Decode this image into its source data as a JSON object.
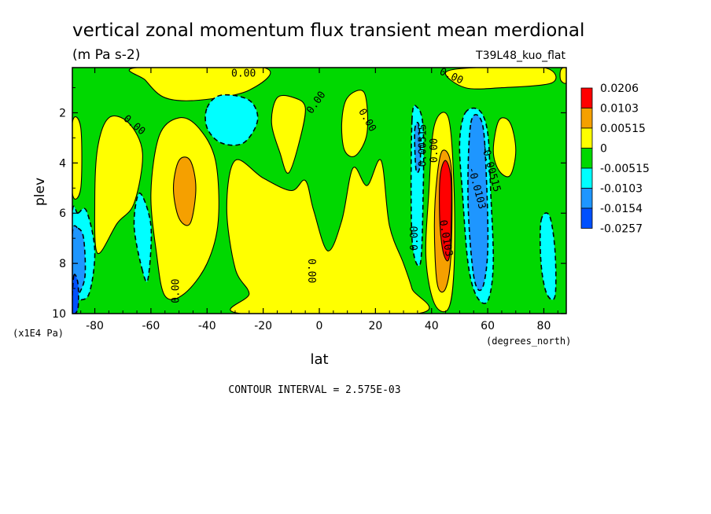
{
  "chart_data": {
    "type": "heatmap",
    "title": "vertical zonal momentum flux transient mean merdional",
    "units": "(m Pa s-2)",
    "dataset": "T39L48_kuo_flat",
    "xlabel": "lat",
    "x_units": "(degrees_north)",
    "ylabel": "plev",
    "y_units": "(x1E4 Pa)",
    "xlim": [
      -88,
      88
    ],
    "ylim": [
      0.2,
      10
    ],
    "y_inverted": true,
    "x_ticks": [
      "-80",
      "-60",
      "-40",
      "-20",
      "0",
      "20",
      "40",
      "60",
      "80"
    ],
    "y_ticks": [
      "2",
      "4",
      "6",
      "8",
      "10"
    ],
    "footer": "CONTOUR INTERVAL = 2.575E-03",
    "legend": [
      {
        "label": "0.0206",
        "color": "#ff0000"
      },
      {
        "label": "0.0103",
        "color": "#f5a000"
      },
      {
        "label": "0.00515",
        "color": "#ffff00"
      },
      {
        "label": "0",
        "color": "#00d800"
      },
      {
        "label": "-0.00515",
        "color": "#00ffff"
      },
      {
        "label": "-0.0103",
        "color": "#1e96ff"
      },
      {
        "label": "-0.0154",
        "color": "#0050ff"
      },
      {
        "label": "-0.0257",
        "color": ""
      }
    ],
    "background_color": "#00d800",
    "regions": [
      {
        "value": 0.00257,
        "color": "#ffff00",
        "pts": [
          [
            -25,
            9.2
          ],
          [
            -30,
            8.2
          ],
          [
            -33,
            5.8
          ],
          [
            -30,
            3.9
          ],
          [
            -20,
            4.6
          ],
          [
            -10,
            5.1
          ],
          [
            -5,
            4.7
          ],
          [
            -2,
            5.9
          ],
          [
            3,
            7.5
          ],
          [
            8,
            6.3
          ],
          [
            12,
            4.2
          ],
          [
            17,
            4.9
          ],
          [
            22,
            3.9
          ],
          [
            25,
            6.5
          ],
          [
            30,
            8.0
          ],
          [
            33,
            9.0
          ],
          [
            35,
            10
          ],
          [
            -28,
            10
          ]
        ]
      },
      {
        "value": 0.00257,
        "color": "#ffff00",
        "pts": [
          [
            -55,
            9.3
          ],
          [
            -58,
            7.6
          ],
          [
            -60,
            5.2
          ],
          [
            -57,
            2.9
          ],
          [
            -50,
            2.2
          ],
          [
            -43,
            2.6
          ],
          [
            -37,
            3.9
          ],
          [
            -36,
            6.3
          ],
          [
            -40,
            8.0
          ],
          [
            -48,
            9.2
          ]
        ]
      },
      {
        "value": 0.00257,
        "color": "#ffff00",
        "pts": [
          [
            -79,
            7.6
          ],
          [
            -80,
            5.6
          ],
          [
            -79,
            3.4
          ],
          [
            -75,
            2.2
          ],
          [
            -68,
            2.4
          ],
          [
            -63,
            3.6
          ],
          [
            -66,
            5.6
          ],
          [
            -72,
            6.4
          ]
        ]
      },
      {
        "value": 0.00257,
        "color": "#ffff00",
        "pts": [
          [
            -88,
            2.4
          ],
          [
            -85,
            2.6
          ],
          [
            -85,
            5.0
          ],
          [
            -88,
            5.2
          ]
        ]
      },
      {
        "value": 0.00257,
        "color": "#ffff00",
        "pts": [
          [
            -65,
            0.2
          ],
          [
            -20,
            0.2
          ],
          [
            -25,
            1.1
          ],
          [
            -43,
            1.5
          ],
          [
            -55,
            1.4
          ],
          [
            -62,
            0.7
          ]
        ]
      },
      {
        "value": 0.00257,
        "color": "#ffff00",
        "pts": [
          [
            45,
            0.4
          ],
          [
            56,
            0.2
          ],
          [
            80,
            0.2
          ],
          [
            83,
            0.8
          ],
          [
            65,
            1.0
          ],
          [
            52,
            1.0
          ]
        ]
      },
      {
        "value": 0.00257,
        "color": "#ffff00",
        "pts": [
          [
            86,
            0.3
          ],
          [
            88,
            0.2
          ],
          [
            88,
            0.8
          ],
          [
            86,
            0.7
          ]
        ]
      },
      {
        "value": 0.00257,
        "color": "#ffff00",
        "pts": [
          [
            -14,
            3.6
          ],
          [
            -17,
            2.4
          ],
          [
            -15,
            1.4
          ],
          [
            -9,
            1.4
          ],
          [
            -5,
            1.8
          ],
          [
            -7,
            3.1
          ],
          [
            -11,
            4.4
          ]
        ]
      },
      {
        "value": 0.00257,
        "color": "#ffff00",
        "pts": [
          [
            8,
            2.4
          ],
          [
            10,
            1.4
          ],
          [
            16,
            1.2
          ],
          [
            17,
            2.8
          ],
          [
            13,
            3.7
          ],
          [
            9,
            3.5
          ]
        ]
      },
      {
        "value": 0.00257,
        "color": "#ffff00",
        "pts": [
          [
            38,
            7.8
          ],
          [
            39,
            5.2
          ],
          [
            41,
            2.5
          ],
          [
            46,
            2.2
          ],
          [
            48,
            5.0
          ],
          [
            48,
            8.2
          ],
          [
            46,
            9.8
          ],
          [
            41,
            9.6
          ]
        ]
      },
      {
        "value": 0.00257,
        "color": "#ffff00",
        "pts": [
          [
            62,
            3.5
          ],
          [
            64,
            2.3
          ],
          [
            68,
            2.4
          ],
          [
            70,
            3.5
          ],
          [
            68,
            4.5
          ],
          [
            64,
            4.3
          ]
        ]
      },
      {
        "value": 0.00772,
        "color": "#f5a000",
        "pts": [
          [
            -50,
            6.2
          ],
          [
            -52,
            5.0
          ],
          [
            -50,
            3.9
          ],
          [
            -46,
            3.9
          ],
          [
            -44,
            5.0
          ],
          [
            -46,
            6.4
          ]
        ]
      },
      {
        "value": 0.00772,
        "color": "#f5a000",
        "pts": [
          [
            41,
            6.5
          ],
          [
            42,
            4.5
          ],
          [
            44,
            3.5
          ],
          [
            47,
            4.2
          ],
          [
            47,
            7.5
          ],
          [
            45,
            9.0
          ],
          [
            42,
            8.8
          ]
        ]
      },
      {
        "value": 0.0155,
        "color": "#ff0000",
        "pts": [
          [
            43,
            6.5
          ],
          [
            43,
            4.6
          ],
          [
            45,
            3.9
          ],
          [
            47,
            4.8
          ],
          [
            46.5,
            7.6
          ],
          [
            44.5,
            7.7
          ]
        ]
      },
      {
        "value": -0.00386,
        "color": "#00ffff",
        "pts": [
          [
            -40,
            1.8
          ],
          [
            -35,
            1.3
          ],
          [
            -25,
            1.5
          ],
          [
            -22,
            2.3
          ],
          [
            -27,
            3.2
          ],
          [
            -35,
            3.2
          ],
          [
            -40,
            2.6
          ]
        ]
      },
      {
        "value": -0.00386,
        "color": "#00ffff",
        "pts": [
          [
            -86,
            6.0
          ],
          [
            -83,
            5.9
          ],
          [
            -80,
            7.5
          ],
          [
            -82,
            9.2
          ],
          [
            -86,
            9.5
          ],
          [
            -88,
            9.8
          ],
          [
            -88,
            6.0
          ]
        ]
      },
      {
        "value": -0.00386,
        "color": "#00ffff",
        "pts": [
          [
            -63,
            8.3
          ],
          [
            -66,
            6.5
          ],
          [
            -64,
            5.2
          ],
          [
            -60,
            6.5
          ],
          [
            -61,
            8.6
          ]
        ]
      },
      {
        "value": -0.00386,
        "color": "#00ffff",
        "pts": [
          [
            33,
            2.3
          ],
          [
            35,
            1.8
          ],
          [
            37,
            2.6
          ],
          [
            37,
            5.3
          ],
          [
            36,
            8.0
          ],
          [
            33,
            7.0
          ]
        ]
      },
      {
        "value": -0.00386,
        "color": "#00ffff",
        "pts": [
          [
            52,
            2.0
          ],
          [
            57,
            1.9
          ],
          [
            60,
            2.8
          ],
          [
            61,
            5.0
          ],
          [
            62,
            8.0
          ],
          [
            60,
            9.5
          ],
          [
            56,
            9.3
          ],
          [
            53,
            8.0
          ],
          [
            51,
            5.2
          ],
          [
            50,
            3.2
          ]
        ]
      },
      {
        "value": -0.00386,
        "color": "#00ffff",
        "pts": [
          [
            79,
            6.3
          ],
          [
            82,
            6.1
          ],
          [
            84,
            7.5
          ],
          [
            84,
            9.3
          ],
          [
            81,
            9.2
          ],
          [
            79,
            8.0
          ]
        ]
      },
      {
        "value": -0.00772,
        "color": "#1e96ff",
        "pts": [
          [
            34,
            2.7
          ],
          [
            35.5,
            2.5
          ],
          [
            36,
            4.0
          ],
          [
            34.5,
            4.3
          ]
        ]
      },
      {
        "value": -0.00772,
        "color": "#1e96ff",
        "pts": [
          [
            54,
            2.4
          ],
          [
            58,
            2.4
          ],
          [
            59.5,
            4.5
          ],
          [
            60,
            7.5
          ],
          [
            58,
            9.0
          ],
          [
            55,
            8.5
          ],
          [
            53,
            5.5
          ]
        ]
      },
      {
        "value": -0.00772,
        "color": "#1e96ff",
        "pts": [
          [
            -86,
            6.6
          ],
          [
            -84,
            7.0
          ],
          [
            -83.5,
            8.5
          ],
          [
            -86,
            9.3
          ],
          [
            -88,
            9.6
          ],
          [
            -88,
            6.8
          ]
        ]
      },
      {
        "value": -0.0128,
        "color": "#0050ff",
        "pts": [
          [
            -87.5,
            8.5
          ],
          [
            -86,
            8.8
          ],
          [
            -86,
            9.8
          ],
          [
            -88,
            9.9
          ]
        ]
      }
    ],
    "contour_labels": [
      {
        "text": "0.00",
        "lat": -27,
        "plev": 0.45,
        "angle": 0
      },
      {
        "text": "0.00",
        "lat": 47,
        "plev": 0.55,
        "angle": 25
      },
      {
        "text": "0.00",
        "lat": -66,
        "plev": 2.5,
        "angle": 40
      },
      {
        "text": "0.00",
        "lat": -1,
        "plev": 1.6,
        "angle": -55
      },
      {
        "text": "0.00",
        "lat": 17,
        "plev": 2.3,
        "angle": 60
      },
      {
        "text": "0.00",
        "lat": -3,
        "plev": 8.3,
        "angle": 90
      },
      {
        "text": "0.00",
        "lat": -51,
        "plev": 9.1,
        "angle": -90
      },
      {
        "text": "0.00515",
        "lat": 37,
        "plev": 3.3,
        "angle": -90
      },
      {
        "text": "0.00",
        "lat": 41,
        "plev": 3.5,
        "angle": -90
      },
      {
        "text": "0.00",
        "lat": 34,
        "plev": 7.0,
        "angle": -90
      },
      {
        "text": "-0.00515",
        "lat": 61,
        "plev": 4.2,
        "angle": 75
      },
      {
        "text": "-0.0103",
        "lat": 56,
        "plev": 5.0,
        "angle": 75
      },
      {
        "text": "0.0103",
        "lat": 45,
        "plev": 7.0,
        "angle": 80
      }
    ]
  }
}
